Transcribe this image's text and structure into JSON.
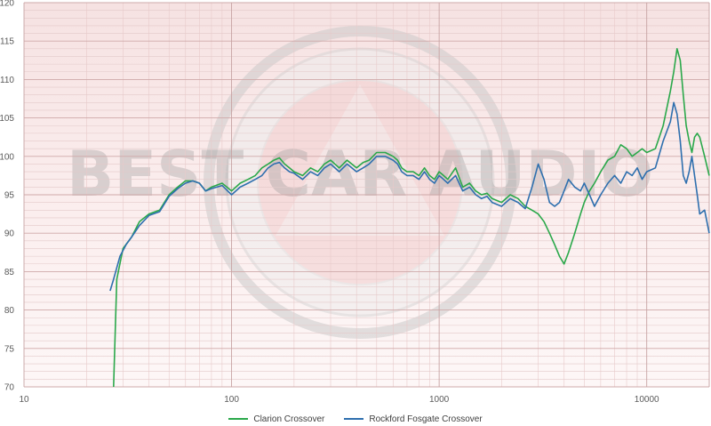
{
  "chart_data": {
    "type": "line",
    "title": "",
    "xlabel": "",
    "ylabel": "",
    "x_scale": "log",
    "xlim": [
      10,
      20000
    ],
    "ylim": [
      70,
      120
    ],
    "x_ticks": [
      10,
      100,
      1000,
      10000
    ],
    "x_tick_labels": [
      "10",
      "100",
      "1000",
      "10000"
    ],
    "y_ticks": [
      70,
      75,
      80,
      85,
      90,
      95,
      100,
      105,
      110,
      115,
      120
    ],
    "y_tick_labels": [
      "70",
      "75",
      "80",
      "85",
      "90",
      "95",
      "100",
      "105",
      "110",
      "115",
      "120"
    ],
    "grid": true,
    "legend_position": "bottom",
    "watermark": "BEST CAR AUDIO",
    "series": [
      {
        "name": "Clarion Crossover",
        "color": "#2aa84a",
        "x": [
          27,
          28,
          30,
          33,
          36,
          40,
          45,
          50,
          55,
          60,
          65,
          70,
          75,
          80,
          90,
          100,
          110,
          120,
          130,
          140,
          150,
          160,
          170,
          180,
          190,
          200,
          220,
          240,
          260,
          280,
          300,
          330,
          360,
          400,
          430,
          460,
          500,
          550,
          600,
          630,
          660,
          700,
          750,
          800,
          850,
          900,
          950,
          1000,
          1050,
          1100,
          1200,
          1300,
          1400,
          1500,
          1600,
          1700,
          1800,
          2000,
          2200,
          2400,
          2600,
          2800,
          3000,
          3200,
          3400,
          3600,
          3800,
          4000,
          4200,
          4500,
          4800,
          5000,
          5300,
          5600,
          6000,
          6500,
          7000,
          7500,
          8000,
          8500,
          9000,
          9500,
          10000,
          11000,
          12000,
          13000,
          13500,
          14000,
          14500,
          15000,
          15500,
          16000,
          16500,
          17000,
          17500,
          18000,
          19000,
          20000
        ],
        "values": [
          70,
          84,
          88,
          89.5,
          91.5,
          92.5,
          93,
          95,
          96,
          96.8,
          96.8,
          96.5,
          95.5,
          96,
          96.5,
          95.5,
          96.5,
          97,
          97.5,
          98.5,
          99,
          99.5,
          99.8,
          99,
          98.5,
          98,
          97.5,
          98.5,
          98,
          99,
          99.5,
          98.5,
          99.5,
          98.5,
          99.2,
          99.5,
          100.5,
          100.5,
          100,
          99.5,
          98.5,
          98,
          98,
          97.5,
          98.5,
          97.5,
          97,
          98,
          97.5,
          97,
          98.5,
          96,
          96.5,
          95.5,
          95,
          95.2,
          94.5,
          94,
          95,
          94.5,
          93.5,
          93,
          92.5,
          91.5,
          90,
          88.5,
          87,
          86,
          87.5,
          90,
          92.5,
          94,
          95.5,
          96.5,
          98,
          99.5,
          100,
          101.5,
          101,
          100,
          100.5,
          101,
          100.5,
          101,
          104,
          108.5,
          111,
          114,
          112.5,
          108,
          104,
          102,
          100.5,
          102.5,
          103,
          102.5,
          100,
          97.5
        ]
      },
      {
        "name": "Rockford Fosgate Crossover",
        "color": "#2e6fae",
        "x": [
          26,
          27,
          29,
          31,
          33,
          36,
          40,
          45,
          50,
          55,
          60,
          65,
          70,
          75,
          80,
          90,
          100,
          110,
          120,
          130,
          140,
          150,
          160,
          170,
          180,
          190,
          200,
          220,
          240,
          260,
          280,
          300,
          330,
          360,
          400,
          430,
          460,
          500,
          550,
          600,
          630,
          660,
          700,
          750,
          800,
          850,
          900,
          950,
          1000,
          1050,
          1100,
          1200,
          1300,
          1400,
          1500,
          1600,
          1700,
          1800,
          2000,
          2200,
          2400,
          2600,
          2800,
          3000,
          3200,
          3400,
          3600,
          3800,
          4000,
          4200,
          4500,
          4800,
          5000,
          5300,
          5600,
          6000,
          6500,
          7000,
          7500,
          8000,
          8500,
          9000,
          9500,
          10000,
          11000,
          12000,
          13000,
          13500,
          14000,
          14500,
          15000,
          15500,
          16000,
          16500,
          17000,
          17500,
          18000,
          19000,
          20000
        ],
        "values": [
          82.5,
          84,
          87,
          88.5,
          89.5,
          91,
          92.3,
          92.8,
          94.8,
          95.8,
          96.5,
          96.8,
          96.5,
          95.5,
          95.8,
          96.2,
          95,
          96,
          96.5,
          97,
          97.5,
          98.5,
          99,
          99.2,
          98.5,
          98,
          97.8,
          97,
          98,
          97.5,
          98.5,
          99,
          98,
          99,
          98,
          98.5,
          99,
          100,
          100,
          99.5,
          99,
          98,
          97.5,
          97.5,
          97,
          98,
          97,
          96.5,
          97.5,
          97,
          96.5,
          97.5,
          95.5,
          96,
          95,
          94.5,
          94.8,
          94,
          93.5,
          94.5,
          94,
          93.2,
          96,
          99,
          97,
          94,
          93.5,
          94,
          95.5,
          97,
          96,
          95.5,
          96.5,
          95,
          93.5,
          95,
          96.5,
          97.5,
          96.5,
          98,
          97.5,
          98.5,
          97,
          98,
          98.5,
          102,
          104.5,
          107,
          105.5,
          102,
          97.5,
          96.5,
          98,
          100,
          97.5,
          95,
          92.5,
          93,
          90
        ]
      }
    ]
  }
}
